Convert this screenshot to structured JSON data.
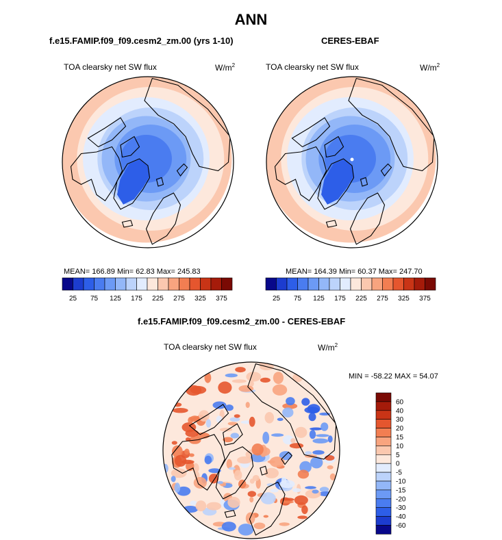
{
  "figure": {
    "title": "ANN"
  },
  "panels": {
    "test": {
      "case_title": "f.e15.FAMIP.f09_f09.cesm2_zm.00 (yrs 1-10)",
      "variable_label": "TOA clearsky net SW flux",
      "units_base": "W/m",
      "units_exp": "2",
      "stats": "MEAN= 166.89  Min=  62.83  Max= 245.83"
    },
    "reference": {
      "case_title": "CERES-EBAF",
      "variable_label": "TOA clearsky net SW flux",
      "units_base": "W/m",
      "units_exp": "2",
      "stats": "MEAN= 164.39  Min=  60.37  Max= 247.70"
    },
    "difference": {
      "case_title": "f.e15.FAMIP.f09_f09.cesm2_zm.00 - CERES-EBAF",
      "variable_label": "TOA clearsky net SW flux",
      "units_base": "W/m",
      "units_exp": "2",
      "stats": "MIN = -58.22 MAX =  54.07"
    }
  },
  "chart_data": [
    {
      "type": "heatmap",
      "projection": "north-polar-stereographic",
      "name": "test-map",
      "stats": {
        "mean": 166.89,
        "min": 62.83,
        "max": 245.83
      },
      "colorbar": {
        "orientation": "horizontal",
        "tick_labels": [
          "25",
          "75",
          "125",
          "175",
          "225",
          "275",
          "325",
          "375"
        ],
        "levels": [
          25,
          50,
          75,
          100,
          125,
          150,
          175,
          200,
          225,
          250,
          275,
          300,
          325,
          350,
          375
        ],
        "colors": [
          "#08088a",
          "#1c3ccf",
          "#2d5ee8",
          "#4a7cf0",
          "#6c9af5",
          "#93b7f8",
          "#bcd3fb",
          "#e2ecfe",
          "#fde8dc",
          "#fbc8af",
          "#f8a47f",
          "#f27e52",
          "#e5562e",
          "#c93416",
          "#a51b0a",
          "#7a0a04"
        ]
      }
    },
    {
      "type": "heatmap",
      "projection": "north-polar-stereographic",
      "name": "reference-map",
      "stats": {
        "mean": 164.39,
        "min": 60.37,
        "max": 247.7
      },
      "colorbar": {
        "orientation": "horizontal",
        "tick_labels": [
          "25",
          "75",
          "125",
          "175",
          "225",
          "275",
          "325",
          "375"
        ],
        "levels": [
          25,
          50,
          75,
          100,
          125,
          150,
          175,
          200,
          225,
          250,
          275,
          300,
          325,
          350,
          375
        ],
        "colors": [
          "#08088a",
          "#1c3ccf",
          "#2d5ee8",
          "#4a7cf0",
          "#6c9af5",
          "#93b7f8",
          "#bcd3fb",
          "#e2ecfe",
          "#fde8dc",
          "#fbc8af",
          "#f8a47f",
          "#f27e52",
          "#e5562e",
          "#c93416",
          "#a51b0a",
          "#7a0a04"
        ]
      }
    },
    {
      "type": "heatmap",
      "projection": "north-polar-stereographic",
      "name": "difference-map",
      "stats": {
        "min": -58.22,
        "max": 54.07
      },
      "colorbar": {
        "orientation": "vertical",
        "tick_labels": [
          "60",
          "40",
          "30",
          "20",
          "15",
          "10",
          "5",
          "0",
          "-5",
          "-10",
          "-15",
          "-20",
          "-30",
          "-40",
          "-60"
        ],
        "colors_top_to_bottom": [
          "#7a0a04",
          "#a51b0a",
          "#c93416",
          "#e5562e",
          "#f27e52",
          "#f8a47f",
          "#fbc8af",
          "#fde8dc",
          "#e2ecfe",
          "#bcd3fb",
          "#93b7f8",
          "#6c9af5",
          "#4a7cf0",
          "#2d5ee8",
          "#1c3ccf",
          "#08088a"
        ]
      }
    }
  ]
}
